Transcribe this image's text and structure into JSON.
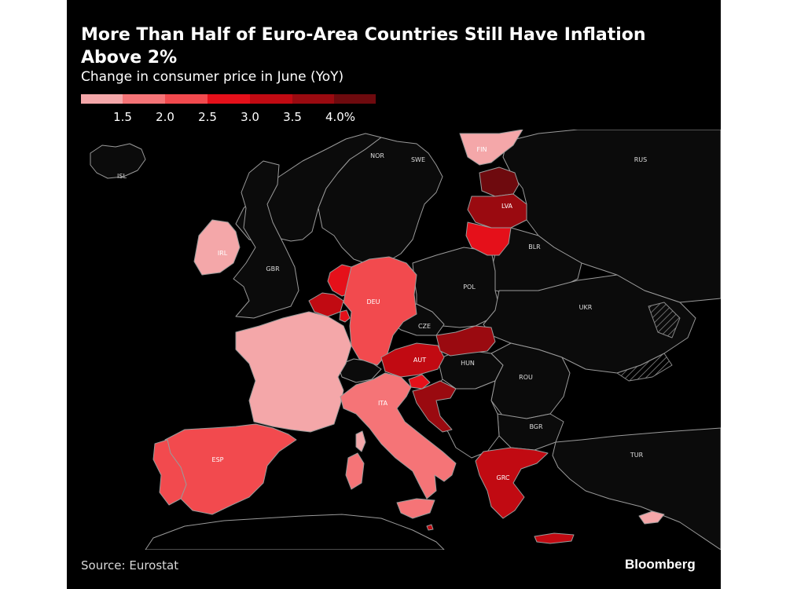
{
  "title": "More Than Half of Euro-Area Countries Still Have Inflation Above 2%",
  "subtitle": "Change in consumer price in June (YoY)",
  "source": "Source: Eurostat",
  "brand": "Bloomberg",
  "legend": {
    "ticks": [
      "1.5",
      "2.0",
      "2.5",
      "3.0",
      "3.5",
      "4.0%"
    ],
    "colors": [
      "#f4a7a9",
      "#f57477",
      "#f24a4e",
      "#e5101a",
      "#c10a12",
      "#9a0a10",
      "#6e0a0e"
    ]
  },
  "colors": {
    "background": "#000000",
    "non_euro_land": "#0b0b0b",
    "border": "#9a9a9a",
    "hatch": "#8a8a8a"
  },
  "countries": {
    "ISL": {
      "label": "ISL",
      "color": "#0b0b0b"
    },
    "NOR": {
      "label": "NOR",
      "color": "#0b0b0b"
    },
    "SWE": {
      "label": "SWE",
      "color": "#0b0b0b"
    },
    "FIN": {
      "label": "FIN",
      "color": "#f4a7a9"
    },
    "RUS": {
      "label": "RUS",
      "color": "#0b0b0b"
    },
    "EST": {
      "label": "",
      "color": "#6e0a0e"
    },
    "LVA": {
      "label": "LVA",
      "color": "#9a0a10"
    },
    "LTU": {
      "label": "",
      "color": "#e5101a"
    },
    "BLR": {
      "label": "BLR",
      "color": "#0b0b0b"
    },
    "IRL": {
      "label": "IRL",
      "color": "#f4a7a9"
    },
    "GBR": {
      "label": "GBR",
      "color": "#0b0b0b"
    },
    "NLD": {
      "label": "",
      "color": "#e5101a"
    },
    "BEL": {
      "label": "",
      "color": "#c10a12"
    },
    "LUX": {
      "label": "",
      "color": "#e5101a"
    },
    "DEU": {
      "label": "DEU",
      "color": "#f24a4e"
    },
    "POL": {
      "label": "POL",
      "color": "#0b0b0b"
    },
    "UKR": {
      "label": "UKR",
      "color": "#0b0b0b"
    },
    "CZE": {
      "label": "CZE",
      "color": "#0b0b0b"
    },
    "SVK": {
      "label": "",
      "color": "#9a0a10"
    },
    "AUT": {
      "label": "AUT",
      "color": "#c10a12"
    },
    "HUN": {
      "label": "HUN",
      "color": "#0b0b0b"
    },
    "FRA": {
      "label": "",
      "color": "#f4a7a9"
    },
    "CHE": {
      "label": "",
      "color": "#0b0b0b"
    },
    "SVN": {
      "label": "",
      "color": "#e5101a"
    },
    "HRV": {
      "label": "",
      "color": "#9a0a10"
    },
    "ITA": {
      "label": "ITA",
      "color": "#f57477"
    },
    "ROU": {
      "label": "ROU",
      "color": "#0b0b0b"
    },
    "BGR": {
      "label": "BGR",
      "color": "#0b0b0b"
    },
    "ESP": {
      "label": "ESP",
      "color": "#f24a4e"
    },
    "PRT": {
      "label": "",
      "color": "#f24a4e"
    },
    "GRC": {
      "label": "GRC",
      "color": "#c10a12"
    },
    "TUR": {
      "label": "TUR",
      "color": "#0b0b0b"
    },
    "CYP": {
      "label": "",
      "color": "#f4a7a9"
    },
    "MLT": {
      "label": "",
      "color": "#c10a12"
    }
  }
}
